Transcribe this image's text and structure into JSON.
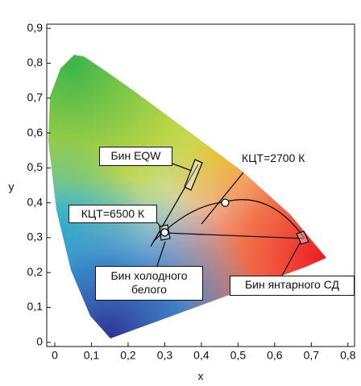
{
  "chart_data": {
    "type": "scatter",
    "x": [
      0.465,
      0.3
    ],
    "values": [
      0.4,
      0.315
    ],
    "xlabel": "x",
    "ylabel": "y",
    "xlim": [
      -0.022,
      0.818
    ],
    "ylim": [
      -0.012,
      0.912
    ],
    "xticks": [
      0,
      {
        "value": 0.1,
        "label": "0,1"
      },
      {
        "value": 0.2,
        "label": "0,2"
      },
      {
        "value": 0.3,
        "label": "0,3"
      },
      {
        "value": 0.4,
        "label": "0,4"
      },
      {
        "value": 0.5,
        "label": "0,5"
      },
      {
        "value": 0.6,
        "label": "0,6"
      },
      {
        "value": 0.7,
        "label": "0,7"
      },
      {
        "value": 0.8,
        "label": "0,8"
      }
    ],
    "yticks": [
      0,
      {
        "value": 0.1,
        "label": "0,1"
      },
      {
        "value": 0.2,
        "label": "0,2"
      },
      {
        "value": 0.3,
        "label": "0,3"
      },
      {
        "value": 0.4,
        "label": "0,4"
      },
      {
        "value": 0.5,
        "label": "0,5"
      },
      {
        "value": 0.6,
        "label": "0,6"
      },
      {
        "value": 0.7,
        "label": "0,7"
      },
      {
        "value": 0.8,
        "label": "0,8"
      },
      {
        "value": 0.9,
        "label": "0,9"
      }
    ],
    "color": "#ffffff",
    "annotations": [
      "Бин EQW",
      "КЦТ=2700 К",
      "КЦТ=6500 К",
      "Бин холодного белого",
      "Бин янтарного СД"
    ]
  }
}
